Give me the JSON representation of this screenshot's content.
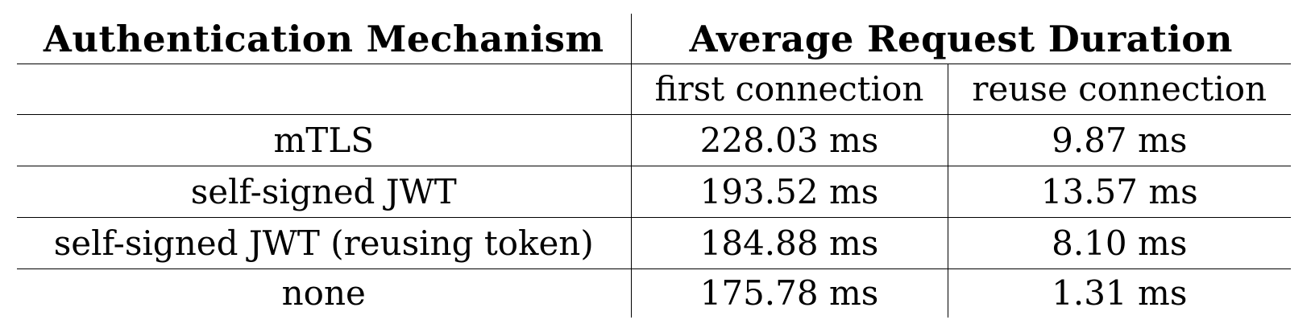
{
  "table": {
    "headers": {
      "mechanism": "Authentication Mechanism",
      "duration": "Average Request Duration",
      "first": "first connection",
      "reuse": "reuse connection"
    },
    "rows": [
      {
        "mechanism": "mTLS",
        "first": "228.03 ms",
        "reuse": "9.87 ms"
      },
      {
        "mechanism": "self-signed JWT",
        "first": "193.52 ms",
        "reuse": "13.57 ms"
      },
      {
        "mechanism": "self-signed JWT (reusing token)",
        "first": "184.88 ms",
        "reuse": "8.10 ms"
      },
      {
        "mechanism": "none",
        "first": "175.78 ms",
        "reuse": "1.31 ms"
      }
    ]
  }
}
